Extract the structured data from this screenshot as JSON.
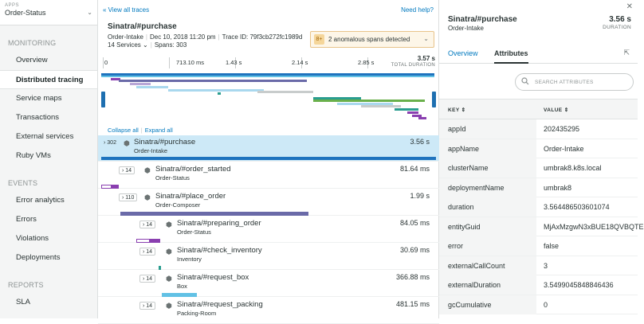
{
  "sidebar": {
    "app_label": "APPS",
    "app_value": "Order-Status",
    "sections": [
      {
        "title": "MONITORING",
        "items": [
          "Overview",
          "Distributed tracing",
          "Service maps",
          "Transactions",
          "External services",
          "Ruby VMs"
        ]
      },
      {
        "title": "EVENTS",
        "items": [
          "Error analytics",
          "Errors",
          "Violations",
          "Deployments"
        ]
      },
      {
        "title": "REPORTS",
        "items": [
          "SLA"
        ]
      }
    ],
    "active_item": "Distributed tracing"
  },
  "trace": {
    "back_link": "« View all traces",
    "help_link": "Need help?",
    "title": "Sinatra/#purchase",
    "service": "Order-Intake",
    "date": "Dec 10, 2018 11:20 pm",
    "trace_id": "Trace ID: 79f3cb272fc1989d",
    "services": "14 Services",
    "spans": "Spans: 303",
    "anomaly_text": "2 anomalous spans detected",
    "anomaly_icon_text": "8+",
    "axis_ticks": [
      "0",
      "713.10 ms",
      "1.43 s",
      "2.14 s",
      "2.85 s"
    ],
    "total_duration": "3.57 s",
    "total_duration_label": "TOTAL DURATION",
    "collapse_all": "Collapse all",
    "expand_all": "Expand all",
    "spans_list": [
      {
        "count": "302",
        "name": "Sinatra/#purchase",
        "service": "Order-Intake",
        "duration": "3.56 s"
      },
      {
        "count": "14",
        "name": "Sinatra/#order_started",
        "service": "Order-Status",
        "duration": "81.64 ms"
      },
      {
        "count": "110",
        "name": "Sinatra/#place_order",
        "service": "Order-Composer",
        "duration": "1.99 s"
      },
      {
        "count": "14",
        "name": "Sinatra/#preparing_order",
        "service": "Order-Status",
        "duration": "84.05 ms"
      },
      {
        "count": "14",
        "name": "Sinatra/#check_inventory",
        "service": "Inventory",
        "duration": "30.69 ms"
      },
      {
        "count": "14",
        "name": "Sinatra/#request_box",
        "service": "Box",
        "duration": "366.88 ms"
      },
      {
        "count": "14",
        "name": "Sinatra/#request_packing",
        "service": "Packing-Room",
        "duration": "481.15 ms"
      }
    ]
  },
  "detail": {
    "title": "Sinatra/#purchase",
    "service": "Order-Intake",
    "duration": "3.56 s",
    "duration_label": "DURATION",
    "tabs": [
      "Overview",
      "Attributes"
    ],
    "active_tab": "Attributes",
    "search_placeholder": "SEARCH ATTRIBUTES",
    "col_key": "KEY",
    "col_value": "VALUE",
    "attributes": [
      {
        "key": "appId",
        "value": "202435295"
      },
      {
        "key": "appName",
        "value": "Order-Intake"
      },
      {
        "key": "clusterName",
        "value": "umbrak8.k8s.local"
      },
      {
        "key": "deploymentName",
        "value": "umbrak8"
      },
      {
        "key": "duration",
        "value": "3.564486503601074"
      },
      {
        "key": "entityGuid",
        "value": "MjAxMzgwN3xBUE18QVBQTE"
      },
      {
        "key": "error",
        "value": "false"
      },
      {
        "key": "externalCallCount",
        "value": "3"
      },
      {
        "key": "externalDuration",
        "value": "3.5499045848846436"
      },
      {
        "key": "gcCumulative",
        "value": "0"
      }
    ]
  },
  "colors": {
    "link": "#0079bf",
    "selected_row": "#cde9f7",
    "root_bar": "#1e73be",
    "purple": "#8a3fb0",
    "slate": "#6a6aa8",
    "teal": "#2a9d8f",
    "green": "#6ab04c",
    "sky": "#62c1e5"
  }
}
